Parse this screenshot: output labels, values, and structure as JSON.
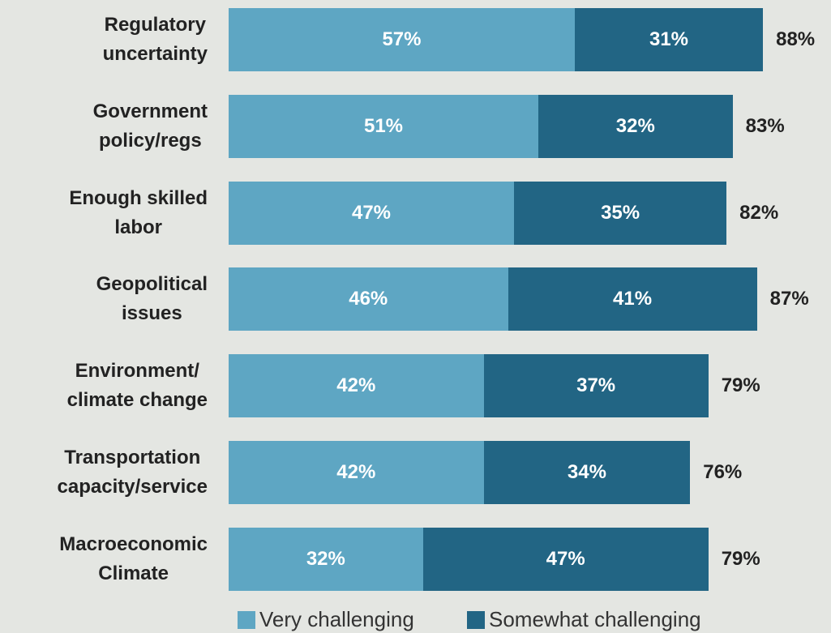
{
  "chart_data": {
    "type": "stacked_barh",
    "categories": [
      "Regulatory\nuncertainty",
      "Government\npolicy/regs",
      "Enough skilled\nlabor",
      "Geopolitical\nissues",
      "Environment/\nclimate change",
      "Transportation\ncapacity/service",
      "Macroeconomic\nClimate"
    ],
    "series": [
      {
        "name": "Very challenging",
        "color": "#5ea6c3",
        "values": [
          57,
          51,
          47,
          46,
          42,
          42,
          32
        ],
        "value_labels": [
          "57%",
          "51%",
          "47%",
          "46%",
          "42%",
          "42%",
          "32%"
        ]
      },
      {
        "name": "Somewhat challenging",
        "color": "#226584",
        "values": [
          31,
          32,
          35,
          41,
          37,
          34,
          47
        ],
        "value_labels": [
          "31%",
          "32%",
          "35%",
          "41%",
          "37%",
          "34%",
          "47%"
        ]
      }
    ],
    "totals": [
      88,
      83,
      82,
      87,
      79,
      76,
      79
    ],
    "total_labels": [
      "88%",
      "83%",
      "82%",
      "87%",
      "79%",
      "76%",
      "79%"
    ],
    "xlim": [
      0,
      100
    ]
  }
}
